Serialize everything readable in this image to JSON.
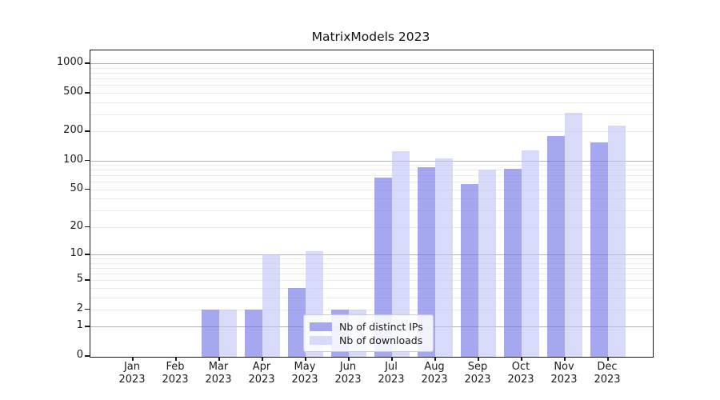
{
  "title": "MatrixModels 2023",
  "year": "2023",
  "chart_data": {
    "type": "bar",
    "title": "MatrixModels 2023",
    "categories": [
      "Jan",
      "Feb",
      "Mar",
      "Apr",
      "May",
      "Jun",
      "Jul",
      "Aug",
      "Sep",
      "Oct",
      "Nov",
      "Dec"
    ],
    "categories_year": "2023",
    "series": [
      {
        "name": "Nb of distinct IPs",
        "color": "#a6a8ef",
        "fill_rgba": "rgba(106,110,228,0.60)",
        "values": [
          0,
          0,
          2,
          2,
          4,
          2,
          66,
          85,
          57,
          82,
          180,
          153
        ]
      },
      {
        "name": "Nb of downloads",
        "color": "#d8daf9",
        "fill_rgba": "rgba(190,193,245,0.60)",
        "values": [
          0,
          0,
          2,
          10,
          11,
          2,
          125,
          105,
          80,
          128,
          310,
          232
        ]
      }
    ],
    "yscale": "log1p",
    "ylim": [
      0,
      1360
    ],
    "yticks": [
      0,
      1,
      2,
      5,
      10,
      20,
      50,
      100,
      200,
      500,
      1000
    ],
    "grid": "horizontal",
    "legend_position": "inside-bottom-center",
    "xlabel": "",
    "ylabel": ""
  },
  "legend": {
    "items": [
      {
        "label": "Nb of distinct IPs"
      },
      {
        "label": "Nb of downloads"
      }
    ]
  },
  "colors": {
    "major_grid": "#b3b3b3",
    "minor_grid": "#ebebeb",
    "spine": "#1a1a1a",
    "text": "#1a1a1a"
  }
}
